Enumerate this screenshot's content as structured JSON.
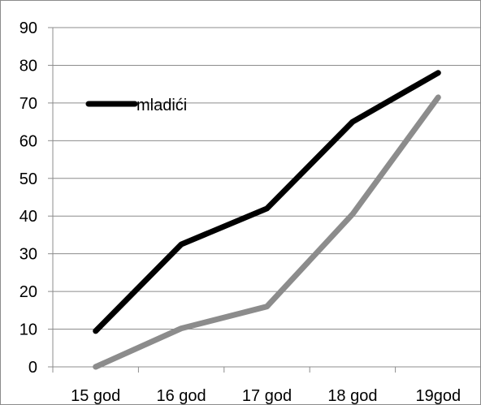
{
  "chart_data": {
    "type": "line",
    "categories": [
      "15 god",
      "16 god",
      "17 god",
      "18 god",
      "19god"
    ],
    "series": [
      {
        "name": "mladići",
        "values": [
          9.5,
          32.5,
          42,
          65,
          78
        ],
        "color": "#000000"
      },
      {
        "values": [
          0,
          10.2,
          16,
          40.5,
          71.5
        ],
        "color": "#8c8c8c"
      }
    ],
    "yticks": [
      "0",
      "10",
      "20",
      "30",
      "40",
      "50",
      "60",
      "70",
      "80",
      "90"
    ],
    "ylim": [
      0,
      90
    ],
    "grid": true,
    "legend": "top-left",
    "title": "",
    "xlabel": "",
    "ylabel": ""
  }
}
